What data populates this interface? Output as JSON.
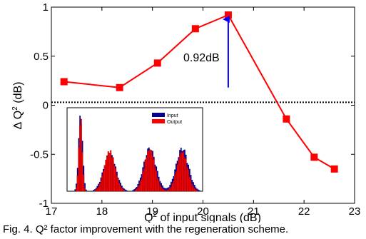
{
  "chart_data": [
    {
      "type": "line",
      "x": [
        17.25,
        18.35,
        19.1,
        19.85,
        20.5,
        21.65,
        22.2,
        22.6
      ],
      "series": [
        {
          "values": [
            0.24,
            0.18,
            0.43,
            0.78,
            0.92,
            -0.14,
            -0.53,
            -0.65
          ],
          "color": "#ff0000",
          "marker": "square"
        }
      ],
      "reference_line": {
        "y": 0.03,
        "style": "dotted",
        "color": "#000000"
      },
      "annotation": {
        "text": "0.92dB",
        "arrow_x": 20.5,
        "arrow_from_y": 0.18,
        "arrow_to_y": 0.92,
        "arrow_color": "#0000ff"
      },
      "xlim": [
        17,
        23
      ],
      "ylim": [
        -1,
        1
      ],
      "xticks": [
        17,
        18,
        19,
        20,
        21,
        22,
        23
      ],
      "xtick_labels": [
        "17",
        "18",
        "19",
        "20",
        "21",
        "22",
        "23"
      ],
      "yticks": [
        -1,
        -0.5,
        0,
        0.5,
        1
      ],
      "ytick_labels": [
        "-1",
        "-0.5",
        "0",
        "0.5",
        "1"
      ],
      "xlabel": "Q2 of input signals (dB)",
      "ylabel": "Δ Q2 (dB)",
      "grid": false
    },
    {
      "type": "bar",
      "role": "inset-histogram",
      "legend": {
        "position": "top-right",
        "entries": [
          {
            "name": "Input",
            "color": "#00008b"
          },
          {
            "name": "Output",
            "color": "#ff0000"
          }
        ]
      },
      "peaks": [
        {
          "center": 0.1,
          "input_height": 0.97,
          "output_height": 0.92,
          "width": 0.013
        },
        {
          "center": 0.315,
          "input_height": 0.47,
          "output_height": 0.5,
          "width": 0.04
        },
        {
          "center": 0.61,
          "input_height": 0.54,
          "output_height": 0.52,
          "width": 0.04
        },
        {
          "center": 0.85,
          "input_height": 0.54,
          "output_height": 0.49,
          "width": 0.04
        }
      ]
    }
  ],
  "caption": "Fig. 4. Q² factor improvement with the regeneration scheme."
}
